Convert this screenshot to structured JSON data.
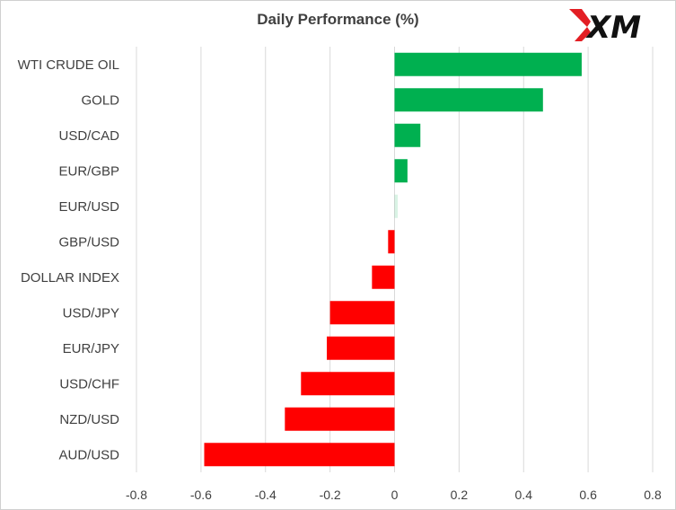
{
  "colors": {
    "positive": "#00b050",
    "negative": "#ff0000",
    "grid": "#d9d9d9",
    "text": "#404040"
  },
  "logo": {
    "text": "XM"
  },
  "chart_data": {
    "type": "bar",
    "orientation": "horizontal",
    "title": "Daily Performance  (%)",
    "categories": [
      "WTI CRUDE OIL",
      "GOLD",
      "USD/CAD",
      "EUR/GBP",
      "EUR/USD",
      "GBP/USD",
      "DOLLAR INDEX",
      "USD/JPY",
      "EUR/JPY",
      "USD/CHF",
      "NZD/USD",
      "AUD/USD"
    ],
    "values": [
      0.58,
      0.46,
      0.08,
      0.04,
      0.01,
      -0.02,
      -0.07,
      -0.2,
      -0.21,
      -0.29,
      -0.34,
      -0.59
    ],
    "xlim": [
      -0.8,
      0.8
    ],
    "xticks": [
      "-0.8",
      "-0.6",
      "-0.4",
      "-0.2",
      "0",
      "0.2",
      "0.4",
      "0.6",
      "0.8"
    ],
    "grid": "vertical",
    "legend": "none"
  }
}
